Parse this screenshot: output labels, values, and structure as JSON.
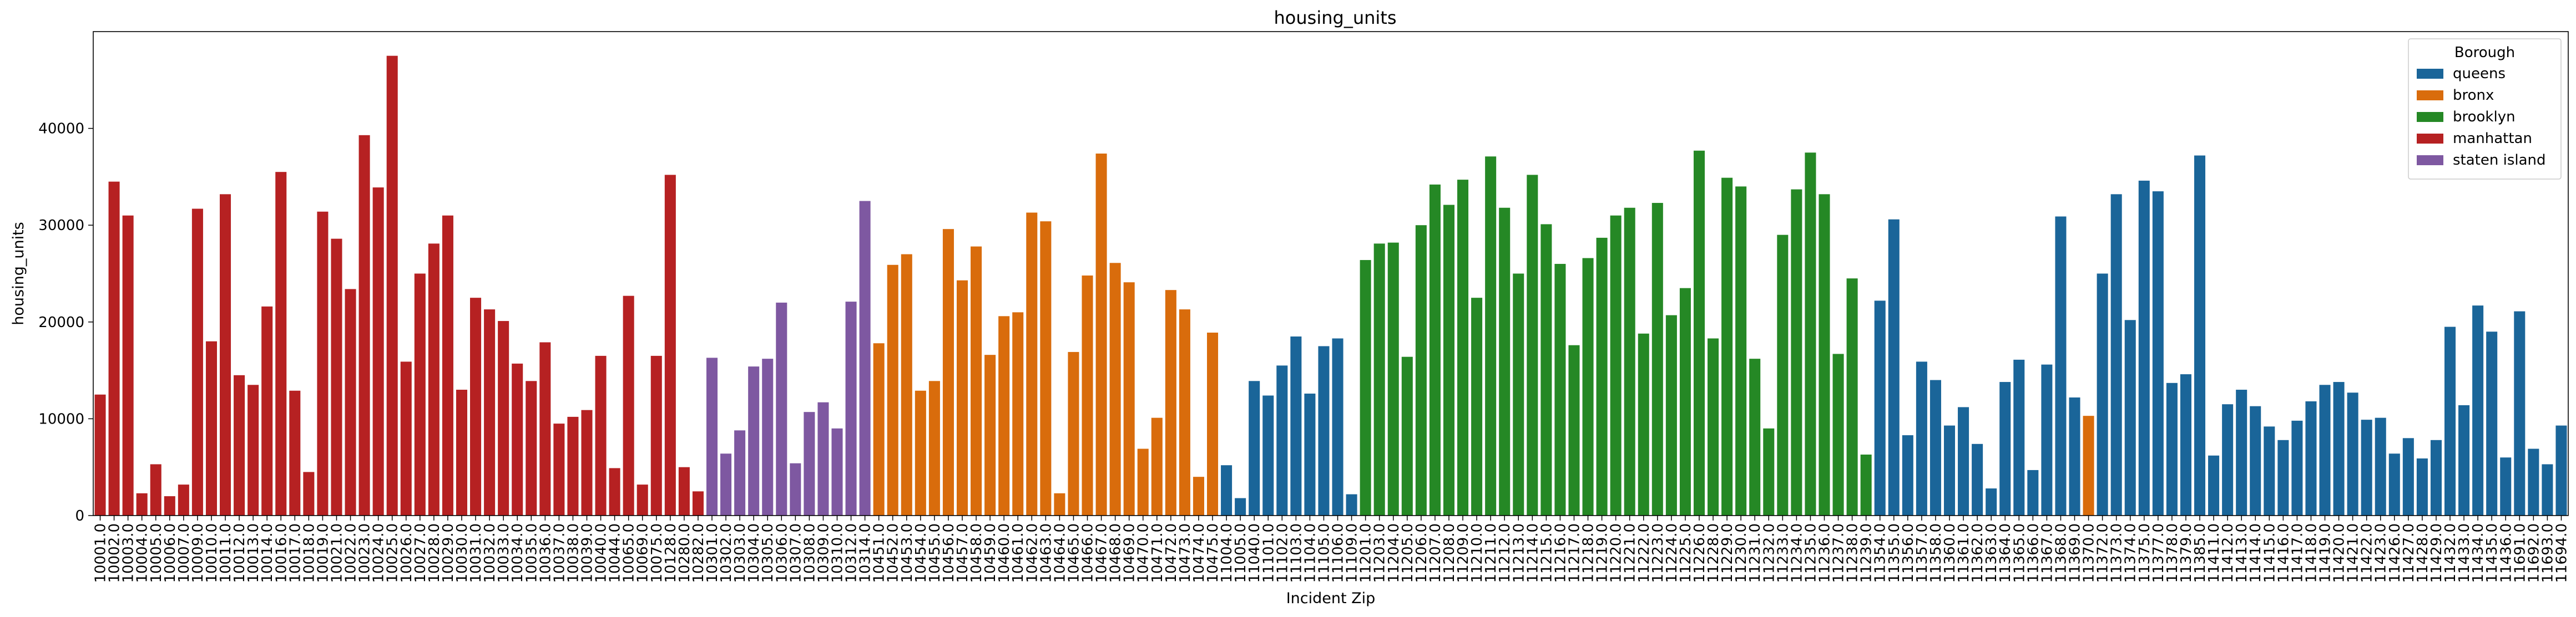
{
  "chart_data": {
    "type": "bar",
    "title": "housing_units",
    "xlabel": "Incident Zip",
    "ylabel": "housing_units",
    "ylim": [
      0,
      50000
    ],
    "yticks": [
      0,
      10000,
      20000,
      30000,
      40000
    ],
    "grid": false,
    "legend": {
      "title": "Borough",
      "placement": "top-right",
      "entries": [
        {
          "name": "queens",
          "color": "#1f77b4"
        },
        {
          "name": "bronx",
          "color": "#ff7f0e"
        },
        {
          "name": "brooklyn",
          "color": "#2ca02c"
        },
        {
          "name": "manhattan",
          "color": "#d62728"
        },
        {
          "name": "staten island",
          "color": "#9467bd"
        }
      ]
    },
    "bars": [
      {
        "zip": "10001.0",
        "value": 12500,
        "borough": "manhattan"
      },
      {
        "zip": "10002.0",
        "value": 34500,
        "borough": "manhattan"
      },
      {
        "zip": "10003.0",
        "value": 31000,
        "borough": "manhattan"
      },
      {
        "zip": "10004.0",
        "value": 2300,
        "borough": "manhattan"
      },
      {
        "zip": "10005.0",
        "value": 5300,
        "borough": "manhattan"
      },
      {
        "zip": "10006.0",
        "value": 2000,
        "borough": "manhattan"
      },
      {
        "zip": "10007.0",
        "value": 3200,
        "borough": "manhattan"
      },
      {
        "zip": "10009.0",
        "value": 31700,
        "borough": "manhattan"
      },
      {
        "zip": "10010.0",
        "value": 18000,
        "borough": "manhattan"
      },
      {
        "zip": "10011.0",
        "value": 33200,
        "borough": "manhattan"
      },
      {
        "zip": "10012.0",
        "value": 14500,
        "borough": "manhattan"
      },
      {
        "zip": "10013.0",
        "value": 13500,
        "borough": "manhattan"
      },
      {
        "zip": "10014.0",
        "value": 21600,
        "borough": "manhattan"
      },
      {
        "zip": "10016.0",
        "value": 35500,
        "borough": "manhattan"
      },
      {
        "zip": "10017.0",
        "value": 12900,
        "borough": "manhattan"
      },
      {
        "zip": "10018.0",
        "value": 4500,
        "borough": "manhattan"
      },
      {
        "zip": "10019.0",
        "value": 31400,
        "borough": "manhattan"
      },
      {
        "zip": "10021.0",
        "value": 28600,
        "borough": "manhattan"
      },
      {
        "zip": "10022.0",
        "value": 23400,
        "borough": "manhattan"
      },
      {
        "zip": "10023.0",
        "value": 39300,
        "borough": "manhattan"
      },
      {
        "zip": "10024.0",
        "value": 33900,
        "borough": "manhattan"
      },
      {
        "zip": "10025.0",
        "value": 47500,
        "borough": "manhattan"
      },
      {
        "zip": "10026.0",
        "value": 15900,
        "borough": "manhattan"
      },
      {
        "zip": "10027.0",
        "value": 25000,
        "borough": "manhattan"
      },
      {
        "zip": "10028.0",
        "value": 28100,
        "borough": "manhattan"
      },
      {
        "zip": "10029.0",
        "value": 31000,
        "borough": "manhattan"
      },
      {
        "zip": "10030.0",
        "value": 13000,
        "borough": "manhattan"
      },
      {
        "zip": "10031.0",
        "value": 22500,
        "borough": "manhattan"
      },
      {
        "zip": "10032.0",
        "value": 21300,
        "borough": "manhattan"
      },
      {
        "zip": "10033.0",
        "value": 20100,
        "borough": "manhattan"
      },
      {
        "zip": "10034.0",
        "value": 15700,
        "borough": "manhattan"
      },
      {
        "zip": "10035.0",
        "value": 13900,
        "borough": "manhattan"
      },
      {
        "zip": "10036.0",
        "value": 17900,
        "borough": "manhattan"
      },
      {
        "zip": "10037.0",
        "value": 9500,
        "borough": "manhattan"
      },
      {
        "zip": "10038.0",
        "value": 10200,
        "borough": "manhattan"
      },
      {
        "zip": "10039.0",
        "value": 10900,
        "borough": "manhattan"
      },
      {
        "zip": "10040.0",
        "value": 16500,
        "borough": "manhattan"
      },
      {
        "zip": "10044.0",
        "value": 4900,
        "borough": "manhattan"
      },
      {
        "zip": "10065.0",
        "value": 22700,
        "borough": "manhattan"
      },
      {
        "zip": "10069.0",
        "value": 3200,
        "borough": "manhattan"
      },
      {
        "zip": "10075.0",
        "value": 16500,
        "borough": "manhattan"
      },
      {
        "zip": "10128.0",
        "value": 35200,
        "borough": "manhattan"
      },
      {
        "zip": "10280.0",
        "value": 5000,
        "borough": "manhattan"
      },
      {
        "zip": "10282.0",
        "value": 2500,
        "borough": "manhattan"
      },
      {
        "zip": "10301.0",
        "value": 16300,
        "borough": "staten island"
      },
      {
        "zip": "10302.0",
        "value": 6400,
        "borough": "staten island"
      },
      {
        "zip": "10303.0",
        "value": 8800,
        "borough": "staten island"
      },
      {
        "zip": "10304.0",
        "value": 15400,
        "borough": "staten island"
      },
      {
        "zip": "10305.0",
        "value": 16200,
        "borough": "staten island"
      },
      {
        "zip": "10306.0",
        "value": 22000,
        "borough": "staten island"
      },
      {
        "zip": "10307.0",
        "value": 5400,
        "borough": "staten island"
      },
      {
        "zip": "10308.0",
        "value": 10700,
        "borough": "staten island"
      },
      {
        "zip": "10309.0",
        "value": 11700,
        "borough": "staten island"
      },
      {
        "zip": "10310.0",
        "value": 9000,
        "borough": "staten island"
      },
      {
        "zip": "10312.0",
        "value": 22100,
        "borough": "staten island"
      },
      {
        "zip": "10314.0",
        "value": 32500,
        "borough": "staten island"
      },
      {
        "zip": "10451.0",
        "value": 17800,
        "borough": "bronx"
      },
      {
        "zip": "10452.0",
        "value": 25900,
        "borough": "bronx"
      },
      {
        "zip": "10453.0",
        "value": 27000,
        "borough": "bronx"
      },
      {
        "zip": "10454.0",
        "value": 12900,
        "borough": "bronx"
      },
      {
        "zip": "10455.0",
        "value": 13900,
        "borough": "bronx"
      },
      {
        "zip": "10456.0",
        "value": 29600,
        "borough": "bronx"
      },
      {
        "zip": "10457.0",
        "value": 24300,
        "borough": "bronx"
      },
      {
        "zip": "10458.0",
        "value": 27800,
        "borough": "bronx"
      },
      {
        "zip": "10459.0",
        "value": 16600,
        "borough": "bronx"
      },
      {
        "zip": "10460.0",
        "value": 20600,
        "borough": "bronx"
      },
      {
        "zip": "10461.0",
        "value": 21000,
        "borough": "bronx"
      },
      {
        "zip": "10462.0",
        "value": 31300,
        "borough": "bronx"
      },
      {
        "zip": "10463.0",
        "value": 30400,
        "borough": "bronx"
      },
      {
        "zip": "10464.0",
        "value": 2300,
        "borough": "bronx"
      },
      {
        "zip": "10465.0",
        "value": 16900,
        "borough": "bronx"
      },
      {
        "zip": "10466.0",
        "value": 24800,
        "borough": "bronx"
      },
      {
        "zip": "10467.0",
        "value": 37400,
        "borough": "bronx"
      },
      {
        "zip": "10468.0",
        "value": 26100,
        "borough": "bronx"
      },
      {
        "zip": "10469.0",
        "value": 24100,
        "borough": "bronx"
      },
      {
        "zip": "10470.0",
        "value": 6900,
        "borough": "bronx"
      },
      {
        "zip": "10471.0",
        "value": 10100,
        "borough": "bronx"
      },
      {
        "zip": "10472.0",
        "value": 23300,
        "borough": "bronx"
      },
      {
        "zip": "10473.0",
        "value": 21300,
        "borough": "bronx"
      },
      {
        "zip": "10474.0",
        "value": 4000,
        "borough": "bronx"
      },
      {
        "zip": "10475.0",
        "value": 18900,
        "borough": "bronx"
      },
      {
        "zip": "11004.0",
        "value": 5200,
        "borough": "queens"
      },
      {
        "zip": "11005.0",
        "value": 1800,
        "borough": "queens"
      },
      {
        "zip": "11040.0",
        "value": 13900,
        "borough": "queens"
      },
      {
        "zip": "11101.0",
        "value": 12400,
        "borough": "queens"
      },
      {
        "zip": "11102.0",
        "value": 15500,
        "borough": "queens"
      },
      {
        "zip": "11103.0",
        "value": 18500,
        "borough": "queens"
      },
      {
        "zip": "11104.0",
        "value": 12600,
        "borough": "queens"
      },
      {
        "zip": "11105.0",
        "value": 17500,
        "borough": "queens"
      },
      {
        "zip": "11106.0",
        "value": 18300,
        "borough": "queens"
      },
      {
        "zip": "11109.0",
        "value": 2200,
        "borough": "queens"
      },
      {
        "zip": "11201.0",
        "value": 26400,
        "borough": "brooklyn"
      },
      {
        "zip": "11203.0",
        "value": 28100,
        "borough": "brooklyn"
      },
      {
        "zip": "11204.0",
        "value": 28200,
        "borough": "brooklyn"
      },
      {
        "zip": "11205.0",
        "value": 16400,
        "borough": "brooklyn"
      },
      {
        "zip": "11206.0",
        "value": 30000,
        "borough": "brooklyn"
      },
      {
        "zip": "11207.0",
        "value": 34200,
        "borough": "brooklyn"
      },
      {
        "zip": "11208.0",
        "value": 32100,
        "borough": "brooklyn"
      },
      {
        "zip": "11209.0",
        "value": 34700,
        "borough": "brooklyn"
      },
      {
        "zip": "11210.0",
        "value": 22500,
        "borough": "brooklyn"
      },
      {
        "zip": "11211.0",
        "value": 37100,
        "borough": "brooklyn"
      },
      {
        "zip": "11212.0",
        "value": 31800,
        "borough": "brooklyn"
      },
      {
        "zip": "11213.0",
        "value": 25000,
        "borough": "brooklyn"
      },
      {
        "zip": "11214.0",
        "value": 35200,
        "borough": "brooklyn"
      },
      {
        "zip": "11215.0",
        "value": 30100,
        "borough": "brooklyn"
      },
      {
        "zip": "11216.0",
        "value": 26000,
        "borough": "brooklyn"
      },
      {
        "zip": "11217.0",
        "value": 17600,
        "borough": "brooklyn"
      },
      {
        "zip": "11218.0",
        "value": 26600,
        "borough": "brooklyn"
      },
      {
        "zip": "11219.0",
        "value": 28700,
        "borough": "brooklyn"
      },
      {
        "zip": "11220.0",
        "value": 31000,
        "borough": "brooklyn"
      },
      {
        "zip": "11221.0",
        "value": 31800,
        "borough": "brooklyn"
      },
      {
        "zip": "11222.0",
        "value": 18800,
        "borough": "brooklyn"
      },
      {
        "zip": "11223.0",
        "value": 32300,
        "borough": "brooklyn"
      },
      {
        "zip": "11224.0",
        "value": 20700,
        "borough": "brooklyn"
      },
      {
        "zip": "11225.0",
        "value": 23500,
        "borough": "brooklyn"
      },
      {
        "zip": "11226.0",
        "value": 37700,
        "borough": "brooklyn"
      },
      {
        "zip": "11228.0",
        "value": 18300,
        "borough": "brooklyn"
      },
      {
        "zip": "11229.0",
        "value": 34900,
        "borough": "brooklyn"
      },
      {
        "zip": "11230.0",
        "value": 34000,
        "borough": "brooklyn"
      },
      {
        "zip": "11231.0",
        "value": 16200,
        "borough": "brooklyn"
      },
      {
        "zip": "11232.0",
        "value": 9000,
        "borough": "brooklyn"
      },
      {
        "zip": "11233.0",
        "value": 29000,
        "borough": "brooklyn"
      },
      {
        "zip": "11234.0",
        "value": 33700,
        "borough": "brooklyn"
      },
      {
        "zip": "11235.0",
        "value": 37500,
        "borough": "brooklyn"
      },
      {
        "zip": "11236.0",
        "value": 33200,
        "borough": "brooklyn"
      },
      {
        "zip": "11237.0",
        "value": 16700,
        "borough": "brooklyn"
      },
      {
        "zip": "11238.0",
        "value": 24500,
        "borough": "brooklyn"
      },
      {
        "zip": "11239.0",
        "value": 6300,
        "borough": "brooklyn"
      },
      {
        "zip": "11354.0",
        "value": 22200,
        "borough": "queens"
      },
      {
        "zip": "11355.0",
        "value": 30600,
        "borough": "queens"
      },
      {
        "zip": "11356.0",
        "value": 8300,
        "borough": "queens"
      },
      {
        "zip": "11357.0",
        "value": 15900,
        "borough": "queens"
      },
      {
        "zip": "11358.0",
        "value": 14000,
        "borough": "queens"
      },
      {
        "zip": "11360.0",
        "value": 9300,
        "borough": "queens"
      },
      {
        "zip": "11361.0",
        "value": 11200,
        "borough": "queens"
      },
      {
        "zip": "11362.0",
        "value": 7400,
        "borough": "queens"
      },
      {
        "zip": "11363.0",
        "value": 2800,
        "borough": "queens"
      },
      {
        "zip": "11364.0",
        "value": 13800,
        "borough": "queens"
      },
      {
        "zip": "11365.0",
        "value": 16100,
        "borough": "queens"
      },
      {
        "zip": "11366.0",
        "value": 4700,
        "borough": "queens"
      },
      {
        "zip": "11367.0",
        "value": 15600,
        "borough": "queens"
      },
      {
        "zip": "11368.0",
        "value": 30900,
        "borough": "queens"
      },
      {
        "zip": "11369.0",
        "value": 12200,
        "borough": "queens"
      },
      {
        "zip": "11370.0",
        "value": 10300,
        "borough": "bronx"
      },
      {
        "zip": "11372.0",
        "value": 25000,
        "borough": "queens"
      },
      {
        "zip": "11373.0",
        "value": 33200,
        "borough": "queens"
      },
      {
        "zip": "11374.0",
        "value": 20200,
        "borough": "queens"
      },
      {
        "zip": "11375.0",
        "value": 34600,
        "borough": "queens"
      },
      {
        "zip": "11377.0",
        "value": 33500,
        "borough": "queens"
      },
      {
        "zip": "11378.0",
        "value": 13700,
        "borough": "queens"
      },
      {
        "zip": "11379.0",
        "value": 14600,
        "borough": "queens"
      },
      {
        "zip": "11385.0",
        "value": 37200,
        "borough": "queens"
      },
      {
        "zip": "11411.0",
        "value": 6200,
        "borough": "queens"
      },
      {
        "zip": "11412.0",
        "value": 11500,
        "borough": "queens"
      },
      {
        "zip": "11413.0",
        "value": 13000,
        "borough": "queens"
      },
      {
        "zip": "11414.0",
        "value": 11300,
        "borough": "queens"
      },
      {
        "zip": "11415.0",
        "value": 9200,
        "borough": "queens"
      },
      {
        "zip": "11416.0",
        "value": 7800,
        "borough": "queens"
      },
      {
        "zip": "11417.0",
        "value": 9800,
        "borough": "queens"
      },
      {
        "zip": "11418.0",
        "value": 11800,
        "borough": "queens"
      },
      {
        "zip": "11419.0",
        "value": 13500,
        "borough": "queens"
      },
      {
        "zip": "11420.0",
        "value": 13800,
        "borough": "queens"
      },
      {
        "zip": "11421.0",
        "value": 12700,
        "borough": "queens"
      },
      {
        "zip": "11422.0",
        "value": 9900,
        "borough": "queens"
      },
      {
        "zip": "11423.0",
        "value": 10100,
        "borough": "queens"
      },
      {
        "zip": "11426.0",
        "value": 6400,
        "borough": "queens"
      },
      {
        "zip": "11427.0",
        "value": 8000,
        "borough": "queens"
      },
      {
        "zip": "11428.0",
        "value": 5900,
        "borough": "queens"
      },
      {
        "zip": "11429.0",
        "value": 7800,
        "borough": "queens"
      },
      {
        "zip": "11432.0",
        "value": 19500,
        "borough": "queens"
      },
      {
        "zip": "11433.0",
        "value": 11400,
        "borough": "queens"
      },
      {
        "zip": "11434.0",
        "value": 21700,
        "borough": "queens"
      },
      {
        "zip": "11435.0",
        "value": 19000,
        "borough": "queens"
      },
      {
        "zip": "11436.0",
        "value": 6000,
        "borough": "queens"
      },
      {
        "zip": "11691.0",
        "value": 21100,
        "borough": "queens"
      },
      {
        "zip": "11692.0",
        "value": 6900,
        "borough": "queens"
      },
      {
        "zip": "11693.0",
        "value": 5300,
        "borough": "queens"
      },
      {
        "zip": "11694.0",
        "value": 9300,
        "borough": "queens"
      }
    ]
  }
}
